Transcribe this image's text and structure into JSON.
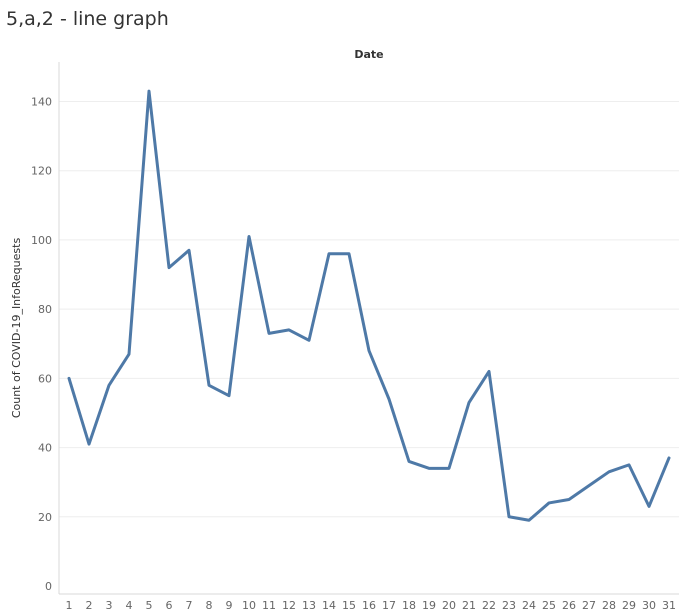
{
  "sheet": {
    "title": "5,a,2 - line graph"
  },
  "chart_data": {
    "type": "line",
    "title": "",
    "header": "Date",
    "xlabel": "",
    "ylabel": "Count of COVID-19_InfoRequests",
    "x": [
      1,
      2,
      3,
      4,
      5,
      6,
      7,
      8,
      9,
      10,
      11,
      12,
      13,
      14,
      15,
      16,
      17,
      18,
      19,
      20,
      21,
      22,
      23,
      24,
      25,
      26,
      27,
      28,
      29,
      30,
      31
    ],
    "y_ticks": [
      0,
      20,
      40,
      60,
      80,
      100,
      120,
      140
    ],
    "ylim": [
      0,
      150
    ],
    "grid": true,
    "series": [
      {
        "values": [
          60,
          41,
          58,
          67,
          143,
          92,
          97,
          58,
          55,
          101,
          73,
          74,
          71,
          96,
          96,
          68,
          54,
          36,
          34,
          34,
          53,
          62,
          20,
          19,
          24,
          25,
          29,
          33,
          35,
          23,
          37
        ],
        "color": "#4e79a7"
      }
    ],
    "colors": {
      "line": "#4e79a7",
      "grid": "#eeeeee",
      "axis": "#d9d9d9"
    }
  }
}
